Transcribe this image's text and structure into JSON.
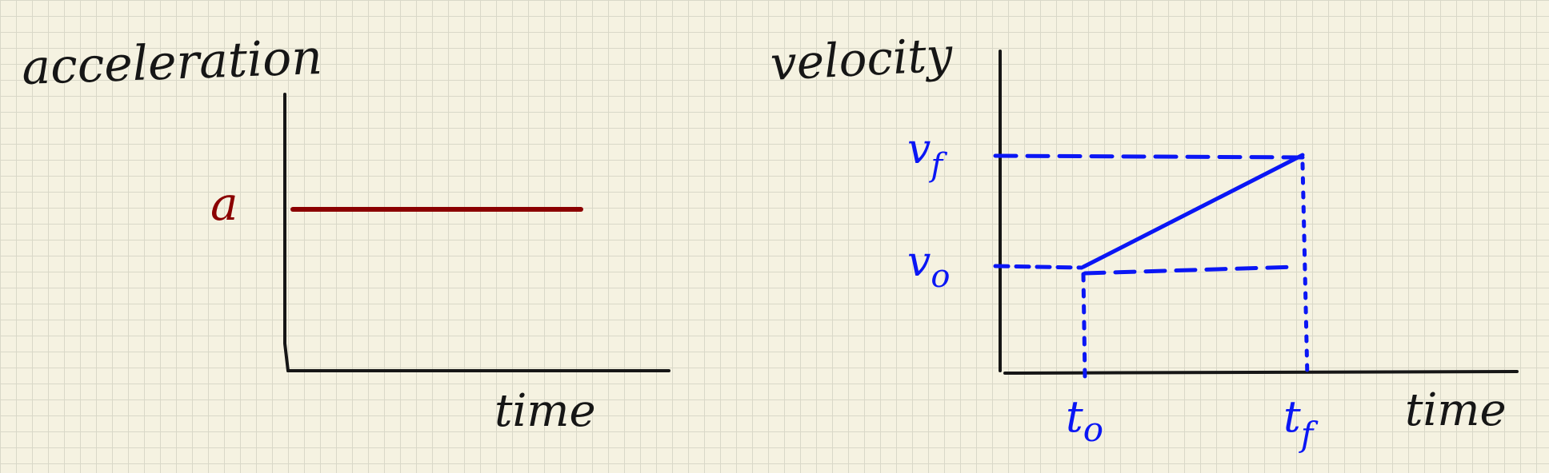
{
  "left_graph": {
    "y_label": "acceleration",
    "x_label": "time",
    "level_label": "a",
    "line_color": "#8b0000"
  },
  "right_graph": {
    "y_label": "velocity",
    "x_label": "time",
    "v_final_label": "v",
    "v_final_sub": "f",
    "v_initial_label": "v",
    "v_initial_sub": "o",
    "t_initial_label": "t",
    "t_initial_sub": "o",
    "t_final_label": "t",
    "t_final_sub": "f",
    "line_color": "#0a16f5"
  },
  "colors": {
    "ink": "#161616",
    "paper": "#f5f2e1",
    "grid": "#d9d8c8"
  }
}
